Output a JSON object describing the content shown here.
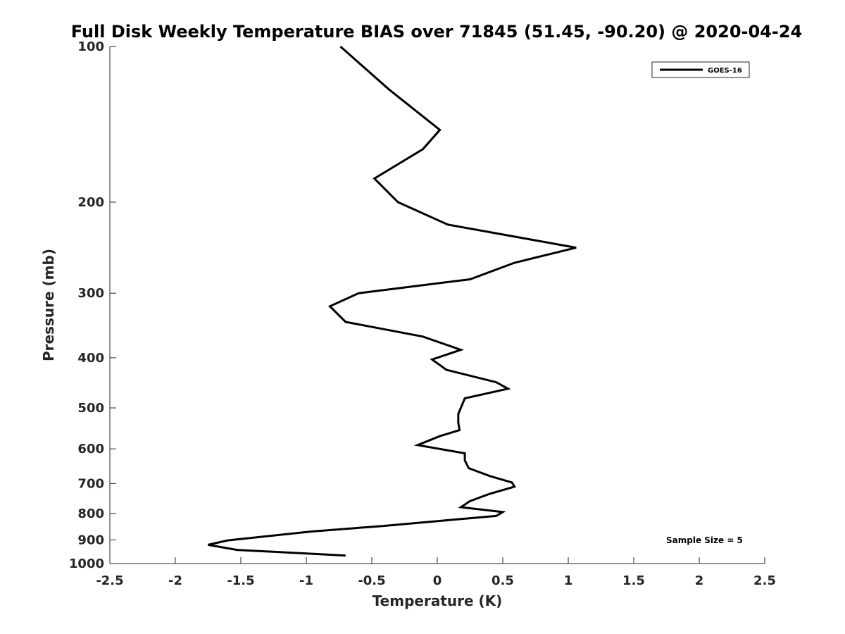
{
  "chart_data": {
    "type": "line",
    "title": "Full Disk Weekly Temperature BIAS over 71845 (51.45, -90.20) @ 2020-04-24",
    "xlabel": "Temperature (K)",
    "ylabel": "Pressure (mb)",
    "xlim": [
      -2.5,
      2.5
    ],
    "ylim": [
      100,
      1000
    ],
    "y_scale": "log",
    "y_reversed": true,
    "x_ticks": [
      -2.5,
      -2,
      -1.5,
      -1,
      -0.5,
      0,
      0.5,
      1,
      1.5,
      2,
      2.5
    ],
    "x_tick_labels": [
      "-2.5",
      "-2",
      "-1.5",
      "-1",
      "-0.5",
      "0",
      "0.5",
      "1",
      "1.5",
      "2",
      "2.5"
    ],
    "y_ticks": [
      100,
      200,
      300,
      400,
      500,
      600,
      700,
      800,
      900,
      1000
    ],
    "y_tick_labels": [
      "100",
      "200",
      "300",
      "400",
      "500",
      "600",
      "700",
      "800",
      "900",
      "1000"
    ],
    "grid": false,
    "legend_position": "top-right",
    "annotation": "Sample Size = 5",
    "series": [
      {
        "name": "GOES-16",
        "color": "#000000",
        "points": [
          {
            "x": -0.74,
            "p": 100
          },
          {
            "x": -0.37,
            "p": 121
          },
          {
            "x": 0.02,
            "p": 145
          },
          {
            "x": -0.11,
            "p": 158
          },
          {
            "x": -0.48,
            "p": 180
          },
          {
            "x": -0.3,
            "p": 200
          },
          {
            "x": 0.08,
            "p": 221
          },
          {
            "x": 1.06,
            "p": 245
          },
          {
            "x": 0.59,
            "p": 262
          },
          {
            "x": 0.25,
            "p": 282
          },
          {
            "x": -0.6,
            "p": 300
          },
          {
            "x": -0.82,
            "p": 318
          },
          {
            "x": -0.7,
            "p": 341
          },
          {
            "x": -0.11,
            "p": 364
          },
          {
            "x": 0.18,
            "p": 386
          },
          {
            "x": -0.04,
            "p": 403
          },
          {
            "x": 0.07,
            "p": 422
          },
          {
            "x": 0.45,
            "p": 446
          },
          {
            "x": 0.54,
            "p": 459
          },
          {
            "x": 0.21,
            "p": 479
          },
          {
            "x": 0.16,
            "p": 514
          },
          {
            "x": 0.16,
            "p": 534
          },
          {
            "x": 0.17,
            "p": 552
          },
          {
            "x": 0.02,
            "p": 567
          },
          {
            "x": -0.15,
            "p": 590
          },
          {
            "x": 0.21,
            "p": 612
          },
          {
            "x": 0.21,
            "p": 632
          },
          {
            "x": 0.24,
            "p": 654
          },
          {
            "x": 0.4,
            "p": 677
          },
          {
            "x": 0.57,
            "p": 697
          },
          {
            "x": 0.59,
            "p": 710
          },
          {
            "x": 0.4,
            "p": 733
          },
          {
            "x": 0.25,
            "p": 757
          },
          {
            "x": 0.18,
            "p": 778
          },
          {
            "x": 0.5,
            "p": 795
          },
          {
            "x": 0.45,
            "p": 809
          },
          {
            "x": 0.04,
            "p": 826
          },
          {
            "x": -0.42,
            "p": 846
          },
          {
            "x": -0.96,
            "p": 867
          },
          {
            "x": -1.6,
            "p": 902
          },
          {
            "x": -1.75,
            "p": 920
          },
          {
            "x": -1.53,
            "p": 941
          },
          {
            "x": -0.7,
            "p": 965
          }
        ]
      }
    ]
  }
}
